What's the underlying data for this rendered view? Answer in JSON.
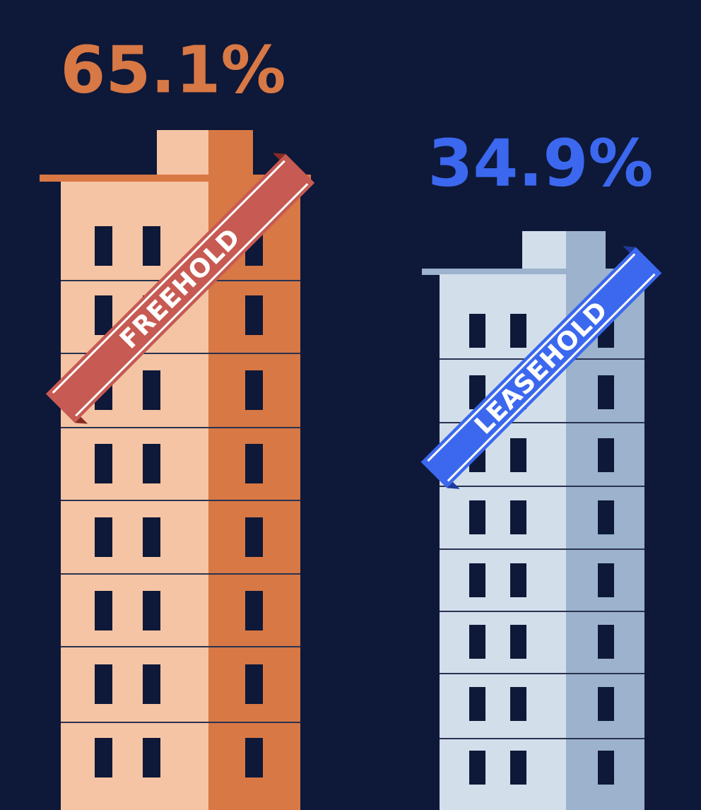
{
  "items": [
    {
      "percent": "65.1%",
      "label": "FREEHOLD"
    },
    {
      "percent": "34.9%",
      "label": "LEASEHOLD"
    }
  ]
}
